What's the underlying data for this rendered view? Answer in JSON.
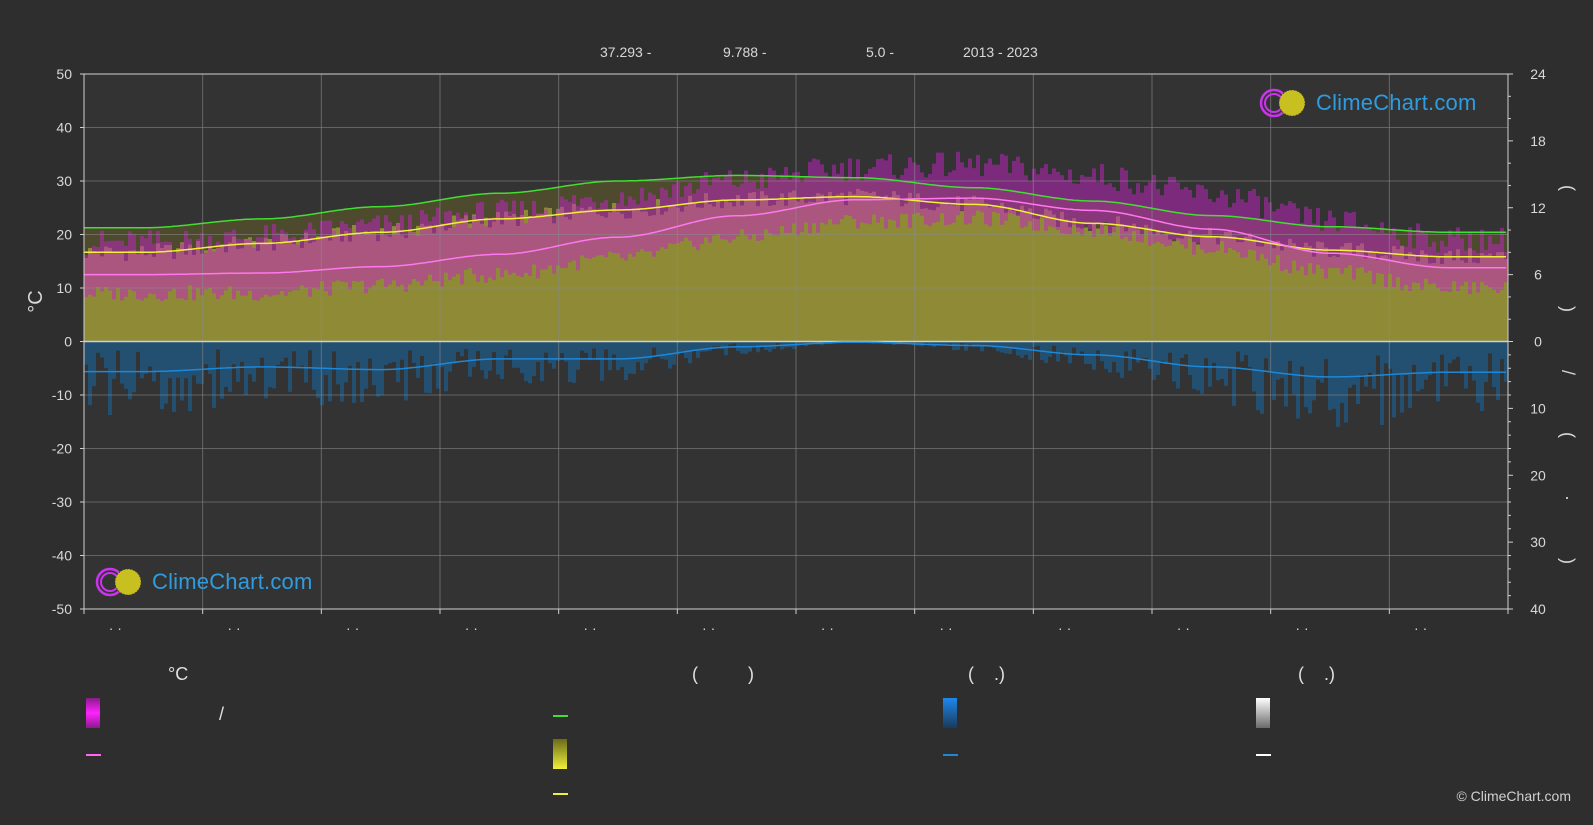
{
  "header": {
    "latitude": "37.293 -",
    "longitude": "9.788 -",
    "elevation": "5.0 -",
    "years": "2013 - 2023"
  },
  "logo_text": "ClimeChart.com",
  "copyright": "© ClimeChart.com",
  "chart_data": {
    "type": "area",
    "left_axis": {
      "label": "°C",
      "ticks": [
        "50",
        "40",
        "30",
        "20",
        "10",
        "0",
        "-10",
        "-20",
        "-30",
        "-40",
        "-50"
      ],
      "range": [
        -50,
        50
      ]
    },
    "right_axis_top": {
      "label": "( )",
      "ticks": [
        "24",
        "18",
        "12",
        "6",
        "0"
      ],
      "range": [
        0,
        24
      ]
    },
    "right_axis_bottom": {
      "label": "/ ( · )",
      "ticks": [
        "0",
        "10",
        "20",
        "30",
        "40"
      ],
      "range": [
        0,
        40
      ]
    },
    "month_labels": [
      "· ·",
      "· ·",
      "· ·",
      "· ·",
      "· ·",
      "· ·",
      "· ·",
      "· ·",
      "· ·",
      "· ·",
      "· ·",
      "· ·"
    ],
    "grid": true,
    "series": [
      {
        "id": "daylight",
        "color": "#44dd33",
        "values": [
          10.2,
          11.0,
          12.1,
          13.3,
          14.4,
          14.9,
          14.7,
          13.8,
          12.6,
          11.3,
          10.3,
          9.8
        ]
      },
      {
        "id": "sunshine",
        "color": "#f0f03a",
        "values": [
          8.0,
          8.8,
          9.8,
          11.0,
          11.8,
          12.7,
          13.0,
          12.3,
          10.6,
          9.4,
          8.2,
          7.6
        ]
      },
      {
        "id": "temp_mean",
        "color": "#ff66ee",
        "values": [
          12.5,
          12.8,
          14.0,
          16.3,
          19.5,
          23.5,
          26.5,
          26.8,
          24.5,
          21.0,
          16.5,
          13.8
        ]
      },
      {
        "id": "temp_max_band",
        "color": "#cc22cc",
        "values": [
          17.5,
          18.5,
          20.5,
          23.0,
          26.0,
          29.0,
          31.5,
          32.0,
          30.0,
          26.5,
          21.5,
          18.0
        ]
      },
      {
        "id": "temp_min_band",
        "color": "#aa3399",
        "values": [
          9.0,
          9.0,
          10.5,
          12.5,
          15.5,
          19.5,
          22.5,
          23.0,
          21.0,
          17.5,
          13.0,
          10.0
        ]
      },
      {
        "id": "precipitation",
        "color": "#1e88d8",
        "values": [
          4.5,
          3.8,
          4.2,
          2.6,
          2.6,
          0.8,
          0.1,
          0.6,
          2.0,
          3.8,
          5.3,
          4.6
        ]
      }
    ]
  },
  "legend": {
    "temperature": {
      "title": "°C",
      "sep": "/"
    },
    "sun": {
      "title": "(          )"
    },
    "rain": {
      "title": "(    .)"
    },
    "snow": {
      "title": "(    .)"
    }
  }
}
